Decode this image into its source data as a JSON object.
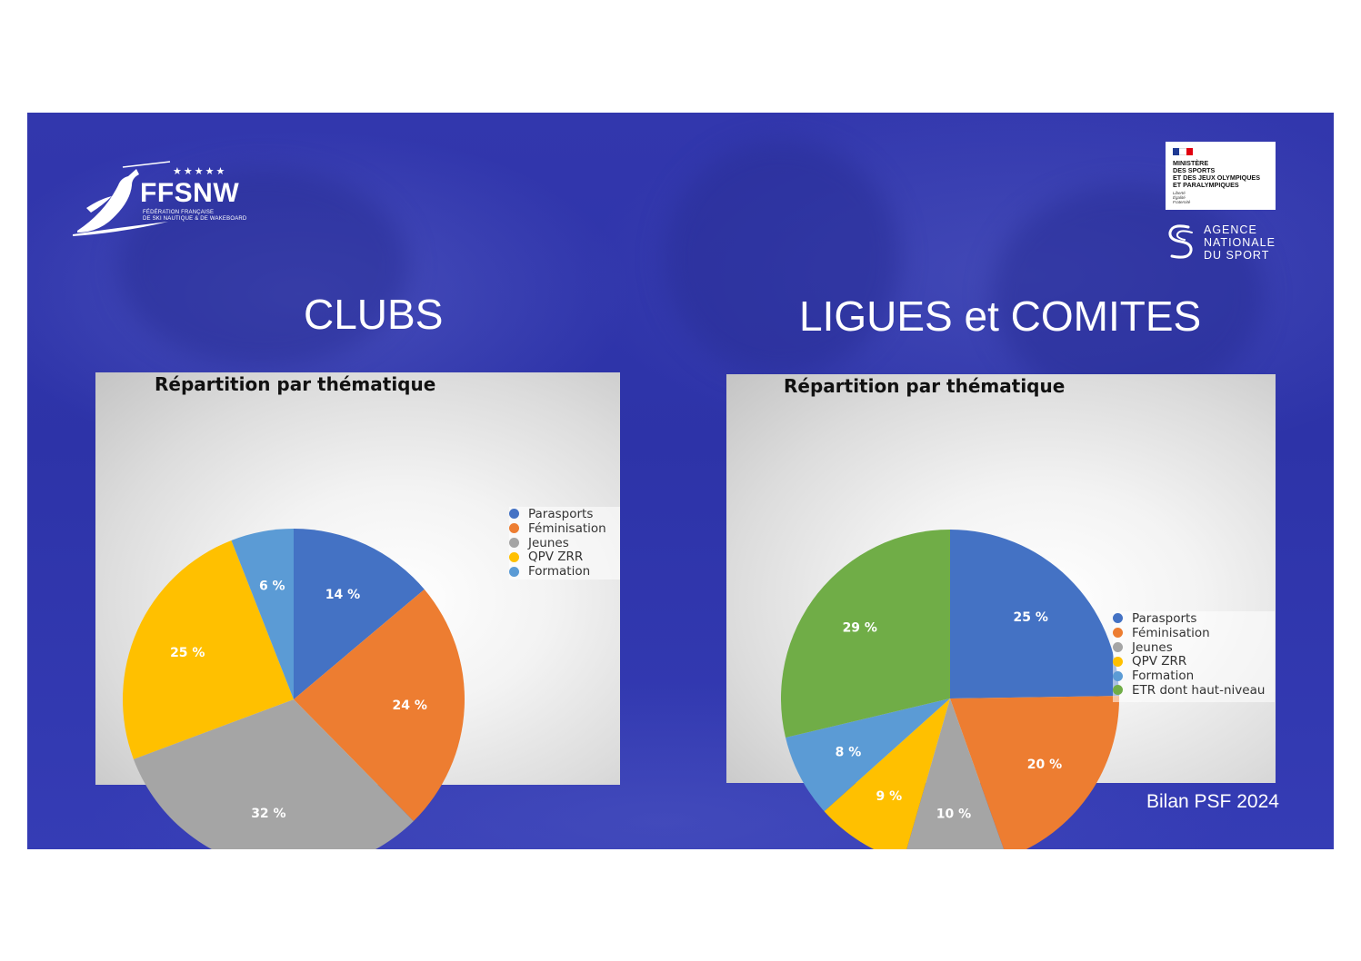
{
  "logos": {
    "ffsnw": {
      "stars": "★★★★★",
      "name": "FFSNW",
      "subtitle_line1": "FÉDÉRATION FRANÇAISE",
      "subtitle_line2": "DE SKI NAUTIQUE & DE WAKEBOARD"
    },
    "ministere": {
      "lines": [
        "MINISTÈRE",
        "DES SPORTS",
        "ET DES JEUX OLYMPIQUES",
        "ET PARALYMPIQUES"
      ],
      "devise": [
        "Liberté",
        "Égalité",
        "Fraternité"
      ]
    },
    "agence": {
      "lines": [
        "AGENCE",
        "NATIONALE",
        "DU SPORT"
      ]
    }
  },
  "headings": {
    "clubs": "CLUBS",
    "ligues": "LIGUES et COMITES"
  },
  "footer": "Bilan PSF 2024",
  "colors": {
    "background": "#3035aa",
    "parasports": "#4472c4",
    "feminisation": "#ed7d31",
    "jeunes": "#a5a5a5",
    "qpv": "#ffc000",
    "formation": "#5b9bd5",
    "etr": "#70ad47"
  },
  "chart_data": [
    {
      "type": "pie",
      "title": "Répartition par thématique",
      "categories": [
        "Parasports",
        "Féminisation",
        "Jeunes",
        "QPV ZRR",
        "Formation"
      ],
      "values": [
        14,
        24,
        32,
        25,
        6
      ],
      "labels": [
        "14 %",
        "24 %",
        "32 %",
        "25 %",
        "6 %"
      ],
      "colors": [
        "#4472c4",
        "#ed7d31",
        "#a5a5a5",
        "#ffc000",
        "#5b9bd5"
      ],
      "legend": "right"
    },
    {
      "type": "pie",
      "title": "Répartition par thématique",
      "categories": [
        "Parasports",
        "Féminisation",
        "Jeunes",
        "QPV ZRR",
        "Formation",
        "ETR dont haut-niveau"
      ],
      "values": [
        25,
        20,
        10,
        9,
        8,
        29
      ],
      "labels": [
        "25 %",
        "20 %",
        "10 %",
        "9 %",
        "8 %",
        "29 %"
      ],
      "colors": [
        "#4472c4",
        "#ed7d31",
        "#a5a5a5",
        "#ffc000",
        "#5b9bd5",
        "#70ad47"
      ],
      "legend": "right"
    }
  ]
}
